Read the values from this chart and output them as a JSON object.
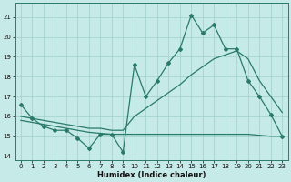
{
  "xlabel": "Humidex (Indice chaleur)",
  "xlim": [
    -0.5,
    23.5
  ],
  "ylim": [
    13.8,
    21.7
  ],
  "yticks": [
    14,
    15,
    16,
    17,
    18,
    19,
    20,
    21
  ],
  "xticks": [
    0,
    1,
    2,
    3,
    4,
    5,
    6,
    7,
    8,
    9,
    10,
    11,
    12,
    13,
    14,
    15,
    16,
    17,
    18,
    19,
    20,
    21,
    22,
    23
  ],
  "bg_color": "#c5eae8",
  "grid_color": "#9fcfcc",
  "line_color": "#2a7a6a",
  "line1_x": [
    0,
    1,
    2,
    3,
    4,
    5,
    6,
    7,
    8,
    9,
    10,
    11,
    12,
    13,
    14,
    15,
    16,
    17,
    18,
    19,
    20,
    21,
    22,
    23
  ],
  "line1_y": [
    16.6,
    15.9,
    15.5,
    15.3,
    15.3,
    14.9,
    14.4,
    15.1,
    15.1,
    14.2,
    18.6,
    17.0,
    17.8,
    18.7,
    19.4,
    21.1,
    20.2,
    20.6,
    19.4,
    19.4,
    17.8,
    17.0,
    16.1,
    15.0
  ],
  "line2_x": [
    0,
    1,
    2,
    3,
    4,
    5,
    6,
    7,
    8,
    9,
    10,
    11,
    12,
    13,
    14,
    15,
    16,
    17,
    18,
    19,
    20,
    21,
    22,
    23
  ],
  "line2_y": [
    15.8,
    15.7,
    15.6,
    15.5,
    15.4,
    15.3,
    15.2,
    15.15,
    15.1,
    15.1,
    15.1,
    15.1,
    15.1,
    15.1,
    15.1,
    15.1,
    15.1,
    15.1,
    15.1,
    15.1,
    15.1,
    15.05,
    15.0,
    15.0
  ],
  "line3_x": [
    0,
    1,
    2,
    3,
    4,
    5,
    6,
    7,
    8,
    9,
    10,
    11,
    12,
    13,
    14,
    15,
    16,
    17,
    18,
    19,
    20,
    21,
    22,
    23
  ],
  "line3_y": [
    16.0,
    15.9,
    15.8,
    15.7,
    15.6,
    15.5,
    15.4,
    15.4,
    15.3,
    15.3,
    16.0,
    16.4,
    16.8,
    17.2,
    17.6,
    18.1,
    18.5,
    18.9,
    19.1,
    19.3,
    18.9,
    17.8,
    17.0,
    16.2
  ]
}
